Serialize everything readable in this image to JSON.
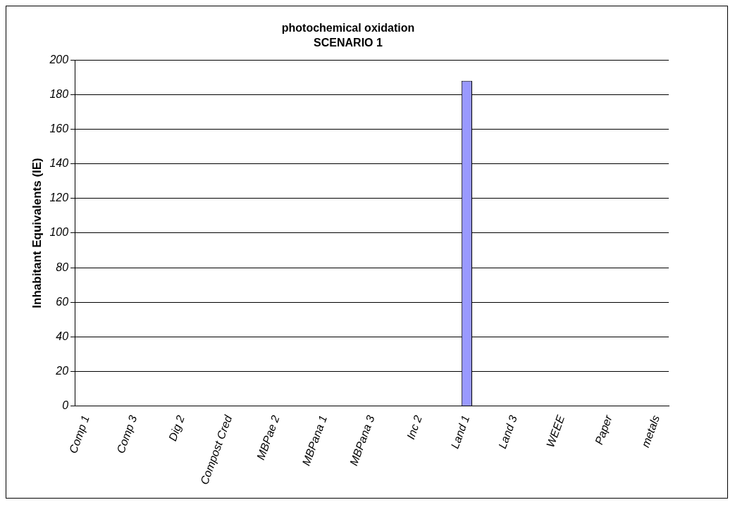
{
  "chart_data": {
    "type": "bar",
    "title": "photochemical oxidation",
    "subtitle": "SCENARIO 1",
    "ylabel": "Inhabitant Equivalents (IE)",
    "categories": [
      "Comp 1",
      null,
      "Comp 3",
      null,
      "Dig 2",
      null,
      "Compost Cred",
      null,
      "MBPae 2",
      null,
      "MBPana 1",
      null,
      "MBPana 3",
      null,
      "Inc 2",
      null,
      "Land 1",
      null,
      "Land 3",
      null,
      "WEEE",
      null,
      "Paper",
      null,
      "metals"
    ],
    "values": [
      0,
      0,
      0,
      0,
      0,
      0,
      0,
      0,
      0,
      0,
      0,
      0,
      0,
      0,
      0,
      0,
      188,
      0,
      0,
      0,
      0,
      0,
      0,
      0,
      0
    ],
    "color": "#9999ff",
    "ylim": [
      0,
      200
    ],
    "yticks": [
      0,
      20,
      40,
      60,
      80,
      100,
      120,
      140,
      160,
      180,
      200
    ],
    "grid": "y",
    "legend": false
  }
}
